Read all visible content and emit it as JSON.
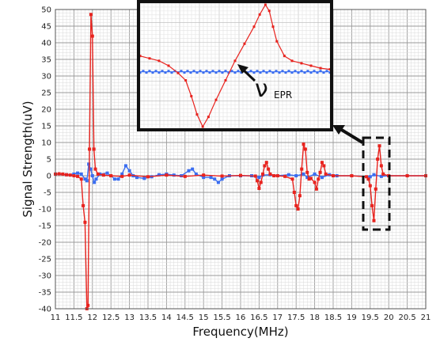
{
  "chart_data": {
    "type": "line",
    "xlabel": "Frequency(MHz)",
    "ylabel": "Signal Strength(uV)",
    "xlim": [
      11,
      21
    ],
    "ylim": [
      -40,
      50
    ],
    "x_ticks": [
      "11",
      "11.5",
      "12",
      "12.5",
      "13",
      "13.5",
      "14",
      "14.5",
      "15",
      "15.5",
      "16",
      "16.5",
      "17",
      "17.5",
      "18",
      "18.5",
      "19",
      "19.5",
      "20",
      "20.5",
      "21"
    ],
    "y_ticks": [
      "50",
      "45",
      "40",
      "35",
      "30",
      "25",
      "20",
      "15",
      "10",
      "5",
      "0",
      "-5",
      "-10",
      "-15",
      "-20",
      "-25",
      "-30",
      "-35",
      "-40"
    ],
    "grid": true,
    "series": [
      {
        "color": "#e8231e",
        "points": [
          [
            11.0,
            0.5
          ],
          [
            11.1,
            0.6
          ],
          [
            11.2,
            0.5
          ],
          [
            11.3,
            0.3
          ],
          [
            11.4,
            0.2
          ],
          [
            11.5,
            0.0
          ],
          [
            11.6,
            -0.2
          ],
          [
            11.7,
            -1.0
          ],
          [
            11.75,
            -9.0
          ],
          [
            11.8,
            -14.0
          ],
          [
            11.85,
            -40.0
          ],
          [
            11.88,
            -39.0
          ],
          [
            11.92,
            8.0
          ],
          [
            11.96,
            48.5
          ],
          [
            12.0,
            42.0
          ],
          [
            12.04,
            8.0
          ],
          [
            12.08,
            2.0
          ],
          [
            12.15,
            0.5
          ],
          [
            12.3,
            0.2
          ],
          [
            12.5,
            0.0
          ],
          [
            12.8,
            -0.2
          ],
          [
            13.0,
            0.2
          ],
          [
            13.5,
            -0.3
          ],
          [
            14.0,
            0.2
          ],
          [
            14.5,
            -0.2
          ],
          [
            15.0,
            0.2
          ],
          [
            15.5,
            -0.1
          ],
          [
            16.0,
            0.1
          ],
          [
            16.4,
            -0.1
          ],
          [
            16.45,
            -1.5
          ],
          [
            16.5,
            -3.8
          ],
          [
            16.55,
            -2.0
          ],
          [
            16.6,
            0.5
          ],
          [
            16.65,
            3.0
          ],
          [
            16.7,
            4.0
          ],
          [
            16.75,
            2.0
          ],
          [
            16.8,
            0.5
          ],
          [
            16.9,
            0.0
          ],
          [
            17.0,
            0.0
          ],
          [
            17.2,
            -0.2
          ],
          [
            17.4,
            -1.0
          ],
          [
            17.45,
            -5.0
          ],
          [
            17.5,
            -9.0
          ],
          [
            17.55,
            -10.0
          ],
          [
            17.6,
            -6.0
          ],
          [
            17.65,
            2.0
          ],
          [
            17.7,
            9.5
          ],
          [
            17.75,
            8.0
          ],
          [
            17.8,
            1.0
          ],
          [
            17.85,
            -1.0
          ],
          [
            17.9,
            -0.8
          ],
          [
            18.0,
            -2.0
          ],
          [
            18.05,
            -4.0
          ],
          [
            18.1,
            -1.0
          ],
          [
            18.15,
            1.0
          ],
          [
            18.2,
            4.0
          ],
          [
            18.25,
            3.0
          ],
          [
            18.3,
            0.5
          ],
          [
            18.5,
            0.0
          ],
          [
            19.0,
            0.0
          ],
          [
            19.4,
            -0.3
          ],
          [
            19.45,
            -1.0
          ],
          [
            19.5,
            -3.0
          ],
          [
            19.55,
            -9.0
          ],
          [
            19.6,
            -13.5
          ],
          [
            19.65,
            -4.0
          ],
          [
            19.7,
            5.0
          ],
          [
            19.75,
            9.0
          ],
          [
            19.8,
            3.0
          ],
          [
            19.85,
            0.5
          ],
          [
            20.0,
            0.0
          ],
          [
            20.5,
            0.0
          ],
          [
            21.0,
            0.0
          ]
        ]
      },
      {
        "color": "#3a6df0",
        "points": [
          [
            11.0,
            0.5
          ],
          [
            11.3,
            0.3
          ],
          [
            11.5,
            0.5
          ],
          [
            11.6,
            0.8
          ],
          [
            11.7,
            0.5
          ],
          [
            11.8,
            -1.0
          ],
          [
            11.85,
            -1.5
          ],
          [
            11.9,
            3.5
          ],
          [
            11.95,
            2.0
          ],
          [
            12.0,
            0.0
          ],
          [
            12.05,
            -2.0
          ],
          [
            12.1,
            -1.0
          ],
          [
            12.2,
            0.5
          ],
          [
            12.4,
            0.8
          ],
          [
            12.5,
            0.0
          ],
          [
            12.6,
            -1.0
          ],
          [
            12.7,
            -1.0
          ],
          [
            12.8,
            0.5
          ],
          [
            12.9,
            3.0
          ],
          [
            13.0,
            1.5
          ],
          [
            13.1,
            0.0
          ],
          [
            13.2,
            -0.5
          ],
          [
            13.4,
            -0.8
          ],
          [
            13.6,
            -0.3
          ],
          [
            13.8,
            0.3
          ],
          [
            14.0,
            0.5
          ],
          [
            14.2,
            0.2
          ],
          [
            14.4,
            0.0
          ],
          [
            14.6,
            1.5
          ],
          [
            14.7,
            2.0
          ],
          [
            14.8,
            0.5
          ],
          [
            15.0,
            -0.5
          ],
          [
            15.2,
            -0.5
          ],
          [
            15.3,
            -1.0
          ],
          [
            15.4,
            -2.0
          ],
          [
            15.5,
            -1.0
          ],
          [
            15.7,
            0.0
          ],
          [
            16.0,
            0.0
          ],
          [
            16.3,
            0.0
          ],
          [
            16.5,
            -0.5
          ],
          [
            16.6,
            0.2
          ],
          [
            16.8,
            0.3
          ],
          [
            17.0,
            0.0
          ],
          [
            17.3,
            0.3
          ],
          [
            17.5,
            0.0
          ],
          [
            17.7,
            0.5
          ],
          [
            17.8,
            -0.5
          ],
          [
            18.0,
            0.5
          ],
          [
            18.2,
            -0.5
          ],
          [
            18.4,
            0.3
          ],
          [
            18.6,
            0.0
          ],
          [
            19.0,
            0.0
          ],
          [
            19.5,
            -0.3
          ],
          [
            19.6,
            0.3
          ],
          [
            19.8,
            -0.2
          ],
          [
            20.0,
            0.0
          ],
          [
            20.5,
            0.0
          ],
          [
            21.0,
            0.0
          ]
        ]
      }
    ],
    "inset": {
      "annotation": "ν",
      "annotation_sub": "EPR",
      "red_shape": [
        [
          0.0,
          0.42
        ],
        [
          0.05,
          0.44
        ],
        [
          0.1,
          0.46
        ],
        [
          0.15,
          0.5
        ],
        [
          0.2,
          0.56
        ],
        [
          0.24,
          0.62
        ],
        [
          0.27,
          0.75
        ],
        [
          0.3,
          0.9
        ],
        [
          0.33,
          1.0
        ],
        [
          0.36,
          0.92
        ],
        [
          0.4,
          0.78
        ],
        [
          0.45,
          0.62
        ],
        [
          0.5,
          0.46
        ],
        [
          0.55,
          0.32
        ],
        [
          0.6,
          0.18
        ],
        [
          0.63,
          0.08
        ],
        [
          0.66,
          0.0
        ],
        [
          0.68,
          0.05
        ],
        [
          0.7,
          0.18
        ],
        [
          0.72,
          0.3
        ],
        [
          0.76,
          0.42
        ],
        [
          0.8,
          0.46
        ],
        [
          0.85,
          0.48
        ],
        [
          0.9,
          0.5
        ],
        [
          0.95,
          0.52
        ],
        [
          1.0,
          0.53
        ]
      ],
      "blue_level": 0.45
    }
  }
}
